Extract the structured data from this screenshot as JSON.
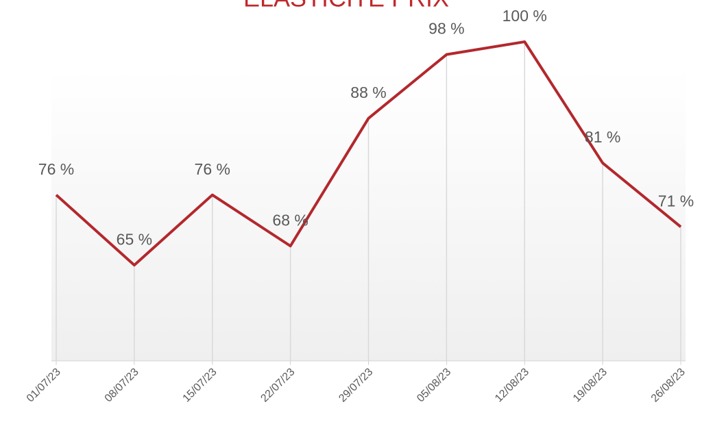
{
  "chart_data": {
    "type": "line",
    "title": "ELASTICITÉ PRIX",
    "categories": [
      "01/07/23",
      "08/07/23",
      "15/07/23",
      "22/07/23",
      "29/07/23",
      "05/08/23",
      "12/08/23",
      "19/08/23",
      "26/08/23"
    ],
    "values": [
      76,
      65,
      76,
      68,
      88,
      98,
      100,
      81,
      71
    ],
    "value_labels": [
      "76 %",
      "65 %",
      "76 %",
      "68 %",
      "88 %",
      "98 %",
      "100 %",
      "81 %",
      "71 %"
    ],
    "color": "#b3282d",
    "title_color": "#c0282d",
    "ylim": [
      50,
      100
    ],
    "drop_lines": true
  }
}
